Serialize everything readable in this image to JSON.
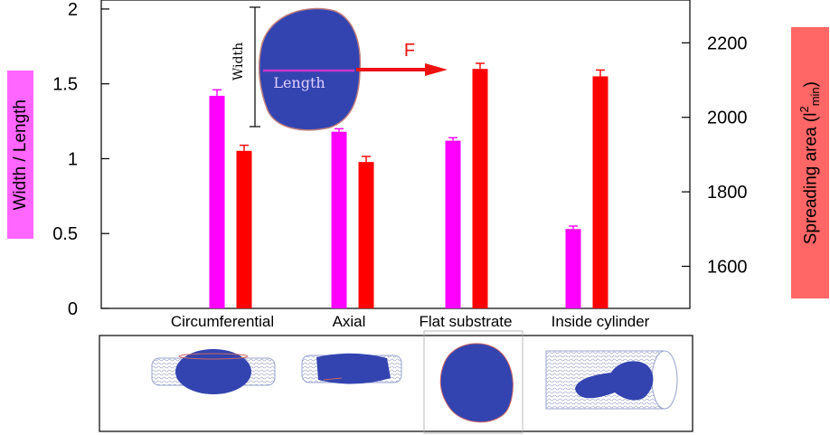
{
  "chart_data": {
    "type": "bar",
    "categories": [
      "Circumferential",
      "Axial",
      "Flat substrate",
      "Inside cylinder"
    ],
    "series": [
      {
        "axis": "left",
        "color": "#ff00ff",
        "values": [
          1.42,
          1.18,
          1.12,
          0.53
        ],
        "errors": [
          0.04,
          0.02,
          0.02,
          0.02
        ]
      },
      {
        "axis": "right",
        "color": "#ff0000",
        "values": [
          1910,
          1880,
          2130,
          2110
        ],
        "errors": [
          15,
          15,
          15,
          17
        ]
      }
    ],
    "ylabel_left": "Width / Length",
    "ylabel_right_text": "Spreading area (l",
    "ylabel_right_sup": "2",
    "ylabel_right_sub": "min",
    "ylabel_right_close": ")",
    "ylim_left": [
      0,
      2.06
    ],
    "yticks_left": [
      {
        "v": 0,
        "t": "0"
      },
      {
        "v": 0.5,
        "t": "0.5"
      },
      {
        "v": 1,
        "t": "1"
      },
      {
        "v": 1.5,
        "t": "1.5"
      },
      {
        "v": 2,
        "t": "2"
      }
    ],
    "ylim_right": [
      1487,
      2315
    ],
    "yticks_right": [
      {
        "v": 1600,
        "t": "1600"
      },
      {
        "v": 1800,
        "t": "1800"
      },
      {
        "v": 2000,
        "t": "2000"
      },
      {
        "v": 2200,
        "t": "2200"
      }
    ],
    "grid": false
  },
  "inset": {
    "width_label": "Width",
    "length_label": "Length",
    "force_label": "F",
    "cell_color": "#3344b0",
    "arrow_color": "#ee1111",
    "length_line_color": "#cc33cc"
  },
  "bottom_panel": {
    "images": [
      "cell-in-cylinder-circumferential",
      "cell-in-cylinder-axial",
      "cell-on-flat-substrate",
      "cell-inside-cylinder"
    ]
  }
}
